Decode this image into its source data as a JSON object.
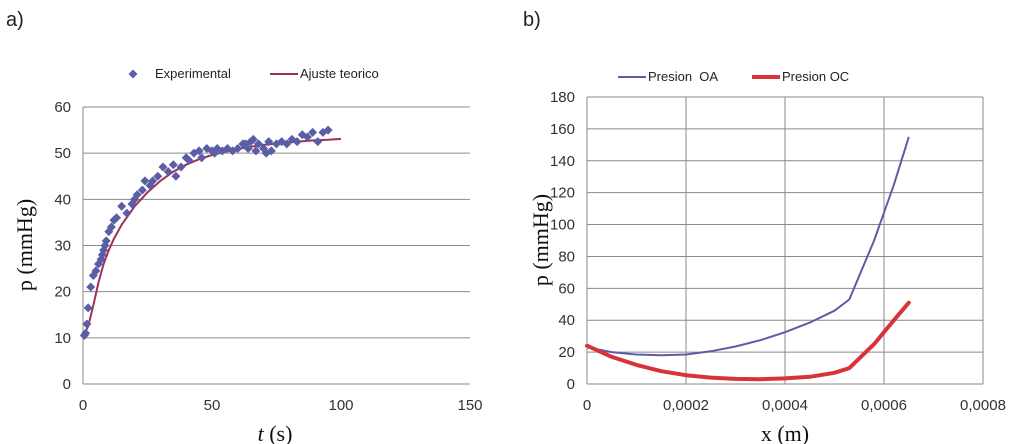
{
  "chart_data": [
    {
      "type": "scatter",
      "panel": "a)",
      "xlabel_italic": "t",
      "xlabel_unit": " (s)",
      "ylabel": "p (mmHg)",
      "xlim": [
        0,
        150
      ],
      "ylim": [
        0,
        60
      ],
      "xticks": [
        0,
        50,
        100,
        150
      ],
      "yticks": [
        0,
        10,
        20,
        30,
        40,
        50,
        60
      ],
      "grid": "horizontal",
      "legend_position": "top",
      "colors": {
        "points": "#5b5ea6",
        "fit": "#a0305a"
      },
      "series": [
        {
          "name": "Experimental",
          "kind": "scatter",
          "x": [
            0.5,
            1,
            1.5,
            2,
            3,
            4,
            5,
            6,
            7,
            7.5,
            8,
            8.5,
            9,
            10,
            11,
            12,
            13,
            15,
            17,
            19,
            20,
            21,
            23,
            24,
            26,
            27,
            29,
            31,
            33,
            35,
            36,
            38,
            40,
            41,
            43,
            45,
            46,
            48,
            50,
            51,
            52,
            54,
            56,
            58,
            60,
            62,
            63,
            64,
            65,
            66,
            67,
            68,
            70,
            71,
            72,
            73,
            75,
            77,
            79,
            81,
            83,
            85,
            87,
            89,
            91,
            93,
            95
          ],
          "y": [
            10.5,
            11,
            13,
            16.5,
            21,
            23.5,
            24.5,
            26,
            27,
            28,
            29,
            30,
            31,
            33,
            34,
            35.5,
            36,
            38.5,
            37,
            39,
            40,
            41,
            42,
            44,
            43,
            44,
            45,
            47,
            46,
            47.5,
            45,
            47,
            49,
            48.5,
            50,
            50.5,
            49,
            51,
            50.5,
            50,
            51,
            50.5,
            51,
            50.5,
            51,
            52,
            52,
            51,
            52.5,
            53,
            50.5,
            52,
            51,
            50,
            52.5,
            50.5,
            52,
            52.5,
            52,
            53,
            52.5,
            54,
            53.5,
            54.5,
            52.5,
            54.5,
            55
          ]
        },
        {
          "name": "Ajuste teorico",
          "kind": "line",
          "x": [
            0,
            2,
            4,
            6,
            8,
            10,
            12,
            15,
            20,
            25,
            30,
            35,
            40,
            45,
            50,
            55,
            60,
            65,
            70,
            75,
            80,
            85,
            90,
            95,
            100
          ],
          "y": [
            10.5,
            12.5,
            17,
            22,
            26,
            29,
            31.5,
            34.5,
            38.5,
            41.5,
            44,
            46,
            47.5,
            48.7,
            49.6,
            50.3,
            50.9,
            51.4,
            51.8,
            52.1,
            52.4,
            52.6,
            52.8,
            52.9,
            53.1
          ]
        }
      ]
    },
    {
      "type": "line",
      "panel": "b)",
      "xlabel": "x (m)",
      "ylabel": "p (mmHg)",
      "xlim": [
        0,
        0.0008
      ],
      "ylim": [
        0,
        180
      ],
      "xticks": [
        0,
        0.0002,
        0.0004,
        0.0006,
        0.0008
      ],
      "xtick_labels": [
        "0",
        "0,0002",
        "0,0004",
        "0,0006",
        "0,0008"
      ],
      "yticks": [
        0,
        20,
        40,
        60,
        80,
        100,
        120,
        140,
        160,
        180
      ],
      "grid": "both",
      "legend_position": "top",
      "colors": {
        "oa": "#5b5ea6",
        "oc": "#d9323a"
      },
      "series": [
        {
          "name": "Presion  OA",
          "x": [
            0,
            5e-05,
            0.0001,
            0.00015,
            0.0002,
            0.00025,
            0.0003,
            0.00035,
            0.0004,
            0.00045,
            0.0005,
            0.00053,
            0.00058,
            0.00062,
            0.00065
          ],
          "y": [
            23,
            20,
            18.5,
            18,
            18.5,
            20.5,
            23.5,
            27.5,
            32.5,
            38.5,
            46,
            53,
            90,
            125,
            155
          ]
        },
        {
          "name": "Presion OC",
          "x": [
            0,
            5e-05,
            0.0001,
            0.00015,
            0.0002,
            0.00025,
            0.0003,
            0.00035,
            0.0004,
            0.00045,
            0.0005,
            0.00053,
            0.00058,
            0.00062,
            0.00065
          ],
          "y": [
            24,
            17,
            12,
            8,
            5.5,
            4,
            3.2,
            3,
            3.5,
            4.5,
            7,
            10,
            25,
            40,
            51
          ]
        }
      ]
    }
  ]
}
